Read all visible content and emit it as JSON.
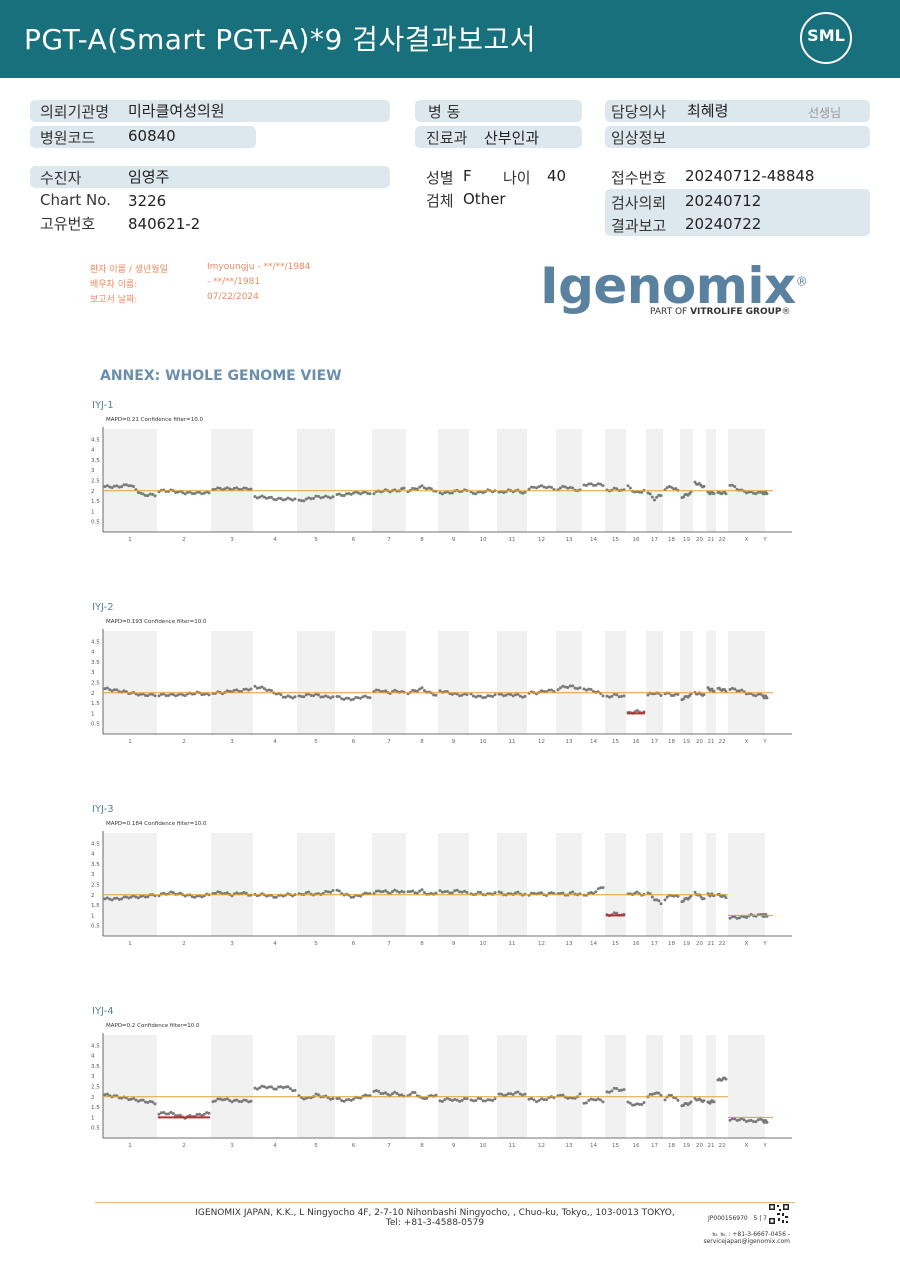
{
  "header": {
    "title": "PGT-A(Smart  PGT-A)*9 검사결과보고서",
    "logo_text": "SML"
  },
  "info": {
    "institution_label": "의뢰기관명",
    "institution_value": "미라클여성의원",
    "ward_label": "병  동",
    "doctor_label": "담당의사",
    "doctor_value": "최혜령",
    "doctor_suffix": "선생님",
    "hospital_code_label": "병원코드",
    "hospital_code_value": "60840",
    "dept_label": "진료과",
    "dept_value": "산부인과",
    "clinical_label": "임상정보",
    "patient_label": "수진자",
    "patient_value": "임영주",
    "sex_label": "성별",
    "sex_value": "F",
    "age_label": "나이",
    "age_value": "40",
    "receipt_label": "접수번호",
    "receipt_value": "20240712-48848",
    "chart_label": "Chart No.",
    "chart_value": "3226",
    "specimen_label": "검체",
    "specimen_value": "Other",
    "request_label": "검사의뢰",
    "request_value": "20240712",
    "unique_label": "고유번호",
    "unique_value": "840621-2",
    "report_label": "결과보고",
    "report_value": "20240722"
  },
  "patient_block": {
    "name_label": "환자 이름 / 생년월일",
    "name_value": "Imyoungju - **/**/1984",
    "partner_label": "배우자 이름:",
    "partner_value": "- **/**/1981",
    "date_label": "보고서 날짜:",
    "date_value": "07/22/2024"
  },
  "brand": {
    "name": "Igenomix",
    "reg": "®",
    "sub_pre": "PART OF ",
    "sub_bold": "VITROLIFE GROUP",
    "sub_post": "®"
  },
  "annex_title": "ANNEX: WHOLE GENOME VIEW",
  "colors": {
    "header": "#17707c",
    "box": "#dde7ee",
    "line": "#e0a030",
    "point": "#7a7a7a",
    "call": "#c0282d",
    "annex": "#6a8fae"
  },
  "chart_data": [
    {
      "type": "scatter",
      "title": "IYJ-1",
      "subtitle": "MAPD=0.21 Confidence filter=10.0",
      "ylim": [
        0,
        5
      ],
      "yticks": [
        "0.5",
        "1",
        "1.5",
        "2",
        "2.5",
        "3",
        "3.5",
        "4",
        "4.5"
      ],
      "x_labels": [
        "1",
        "2",
        "3",
        "4",
        "5",
        "6",
        "7",
        "8",
        "9",
        "10",
        "11",
        "12",
        "13",
        "14",
        "15",
        "16",
        "17",
        "18",
        "19",
        "20",
        "21",
        "22",
        "X",
        "Y"
      ],
      "reference_line": 2,
      "segments": [
        {
          "chrom": "1",
          "values": [
            2.2,
            2.2,
            2.3,
            1.8,
            1.8
          ]
        },
        {
          "chrom": "2",
          "values": [
            2.0,
            2.0,
            1.9,
            1.9,
            1.9
          ]
        },
        {
          "chrom": "3",
          "values": [
            2.1,
            2.1,
            2.1,
            2.1,
            2.1
          ]
        },
        {
          "chrom": "4",
          "values": [
            1.7,
            1.7,
            1.6,
            1.6,
            1.6
          ]
        },
        {
          "chrom": "5",
          "values": [
            1.5,
            1.6,
            1.7,
            1.7,
            1.7
          ]
        },
        {
          "chrom": "6",
          "values": [
            1.8,
            1.8,
            1.9,
            1.9,
            1.9
          ]
        },
        {
          "chrom": "7",
          "values": [
            1.9,
            2.0,
            2.0,
            2.0,
            2.1
          ]
        },
        {
          "chrom": "8",
          "values": [
            2.0,
            2.1,
            2.2,
            2.1,
            2.0
          ]
        },
        {
          "chrom": "9",
          "values": [
            1.9,
            1.9,
            2.0,
            2.0
          ]
        },
        {
          "chrom": "10",
          "values": [
            1.9,
            1.9,
            2.0,
            2.0
          ]
        },
        {
          "chrom": "11",
          "values": [
            1.9,
            2.0,
            2.0,
            1.9
          ]
        },
        {
          "chrom": "12",
          "values": [
            2.1,
            2.2,
            2.2,
            2.1
          ]
        },
        {
          "chrom": "13",
          "values": [
            2.1,
            2.2,
            2.1,
            2.0
          ]
        },
        {
          "chrom": "14",
          "values": [
            2.3,
            2.3,
            2.3
          ]
        },
        {
          "chrom": "15",
          "values": [
            2.0,
            2.1,
            2.0
          ]
        },
        {
          "chrom": "16",
          "values": [
            2.2,
            1.9,
            2.0
          ]
        },
        {
          "chrom": "17",
          "values": [
            1.9,
            1.6,
            1.8
          ]
        },
        {
          "chrom": "18",
          "values": [
            2.1,
            2.2,
            2.0
          ]
        },
        {
          "chrom": "19",
          "values": [
            1.7,
            1.9
          ]
        },
        {
          "chrom": "20",
          "values": [
            2.4,
            2.2
          ]
        },
        {
          "chrom": "21",
          "values": [
            1.9,
            1.9
          ]
        },
        {
          "chrom": "22",
          "values": [
            1.9,
            1.9
          ]
        },
        {
          "chrom": "X",
          "values": [
            2.3,
            2.0,
            1.9,
            1.9
          ]
        },
        {
          "chrom": "Y",
          "values": [
            1.9
          ]
        }
      ],
      "calls": []
    },
    {
      "type": "scatter",
      "title": "IYJ-2",
      "subtitle": "MAPD=0.193 Confidence filter=10.0",
      "ylim": [
        0,
        5
      ],
      "yticks": [
        "0.5",
        "1",
        "1.5",
        "2",
        "2.5",
        "3",
        "3.5",
        "4",
        "4.5"
      ],
      "x_labels": [
        "1",
        "2",
        "3",
        "4",
        "5",
        "6",
        "7",
        "8",
        "9",
        "10",
        "11",
        "12",
        "13",
        "14",
        "15",
        "16",
        "17",
        "18",
        "19",
        "20",
        "21",
        "22",
        "X",
        "Y"
      ],
      "reference_line": 2,
      "segments": [
        {
          "chrom": "1",
          "values": [
            2.2,
            2.1,
            2.0,
            1.9,
            1.9
          ]
        },
        {
          "chrom": "2",
          "values": [
            1.9,
            1.9,
            1.9,
            2.0,
            1.9
          ]
        },
        {
          "chrom": "3",
          "values": [
            2.0,
            2.0,
            2.1,
            2.1,
            2.2
          ]
        },
        {
          "chrom": "4",
          "values": [
            2.3,
            2.2,
            2.0,
            1.8,
            1.8
          ]
        },
        {
          "chrom": "5",
          "values": [
            1.8,
            1.9,
            1.9,
            1.8,
            1.8
          ]
        },
        {
          "chrom": "6",
          "values": [
            1.8,
            1.7,
            1.7,
            1.8,
            1.8
          ]
        },
        {
          "chrom": "7",
          "values": [
            2.1,
            2.1,
            2.0,
            2.1,
            2.0
          ]
        },
        {
          "chrom": "8",
          "values": [
            2.0,
            2.1,
            2.2,
            2.0,
            1.9
          ]
        },
        {
          "chrom": "9",
          "values": [
            2.1,
            2.0,
            1.9,
            1.9
          ]
        },
        {
          "chrom": "10",
          "values": [
            1.9,
            1.8,
            1.8,
            1.9
          ]
        },
        {
          "chrom": "11",
          "values": [
            1.9,
            1.9,
            1.9,
            1.8
          ]
        },
        {
          "chrom": "12",
          "values": [
            2.0,
            2.0,
            2.1,
            2.1
          ]
        },
        {
          "chrom": "13",
          "values": [
            2.2,
            2.3,
            2.3,
            2.2
          ]
        },
        {
          "chrom": "14",
          "values": [
            2.2,
            2.1,
            1.9
          ]
        },
        {
          "chrom": "15",
          "values": [
            1.8,
            1.9,
            1.8
          ]
        },
        {
          "chrom": "16",
          "values": [
            1.0,
            1.1,
            1.05
          ]
        },
        {
          "chrom": "17",
          "values": [
            1.9,
            2.0,
            1.9
          ]
        },
        {
          "chrom": "18",
          "values": [
            2.0,
            1.9,
            1.9
          ]
        },
        {
          "chrom": "19",
          "values": [
            1.7,
            1.9
          ]
        },
        {
          "chrom": "20",
          "values": [
            2.0,
            1.9
          ]
        },
        {
          "chrom": "21",
          "values": [
            2.2,
            2.1
          ]
        },
        {
          "chrom": "22",
          "values": [
            2.2,
            2.1
          ]
        },
        {
          "chrom": "X",
          "values": [
            2.2,
            2.1,
            1.9,
            1.9
          ]
        },
        {
          "chrom": "Y",
          "values": [
            1.8
          ]
        }
      ],
      "calls": [
        {
          "chrom": "16",
          "value": 1
        }
      ]
    },
    {
      "type": "scatter",
      "title": "IYJ-3",
      "subtitle": "MAPD=0.184 Confidence filter=10.0",
      "ylim": [
        0,
        5
      ],
      "yticks": [
        "0.5",
        "1",
        "1.5",
        "2",
        "2.5",
        "3",
        "3.5",
        "4",
        "4.5"
      ],
      "x_labels": [
        "1",
        "2",
        "3",
        "4",
        "5",
        "6",
        "7",
        "8",
        "9",
        "10",
        "11",
        "12",
        "13",
        "14",
        "15",
        "16",
        "17",
        "18",
        "19",
        "20",
        "21",
        "22",
        "X",
        "Y"
      ],
      "reference_line": 2,
      "segments": [
        {
          "chrom": "1",
          "values": [
            1.8,
            1.8,
            1.9,
            1.9,
            2.0
          ]
        },
        {
          "chrom": "2",
          "values": [
            2.0,
            2.1,
            2.0,
            1.9,
            2.0
          ]
        },
        {
          "chrom": "3",
          "values": [
            2.1,
            2.1,
            2.0,
            2.1,
            2.0
          ]
        },
        {
          "chrom": "4",
          "values": [
            2.0,
            2.0,
            1.9,
            2.0,
            2.0
          ]
        },
        {
          "chrom": "5",
          "values": [
            2.0,
            2.1,
            2.0,
            2.1,
            2.2
          ]
        },
        {
          "chrom": "6",
          "values": [
            2.2,
            2.0,
            1.9,
            2.0,
            2.1
          ]
        },
        {
          "chrom": "7",
          "values": [
            2.1,
            2.2,
            2.1,
            2.2,
            2.1
          ]
        },
        {
          "chrom": "8",
          "values": [
            2.2,
            2.1,
            2.2,
            2.0,
            2.1
          ]
        },
        {
          "chrom": "9",
          "values": [
            2.2,
            2.1,
            2.2,
            2.1
          ]
        },
        {
          "chrom": "10",
          "values": [
            2.0,
            2.1,
            2.0,
            2.1
          ]
        },
        {
          "chrom": "11",
          "values": [
            2.1,
            2.0,
            2.1,
            2.0
          ]
        },
        {
          "chrom": "12",
          "values": [
            2.0,
            2.1,
            2.0,
            2.1
          ]
        },
        {
          "chrom": "13",
          "values": [
            2.1,
            2.0,
            2.1,
            2.0
          ]
        },
        {
          "chrom": "14",
          "values": [
            2.0,
            2.1,
            2.4
          ]
        },
        {
          "chrom": "15",
          "values": [
            1.0,
            1.1,
            1.0
          ]
        },
        {
          "chrom": "16",
          "values": [
            2.0,
            2.1,
            2.0
          ]
        },
        {
          "chrom": "17",
          "values": [
            2.1,
            1.8,
            1.6
          ]
        },
        {
          "chrom": "18",
          "values": [
            1.8,
            2.0,
            1.9
          ]
        },
        {
          "chrom": "19",
          "values": [
            1.7,
            1.9
          ]
        },
        {
          "chrom": "20",
          "values": [
            2.1,
            1.8
          ]
        },
        {
          "chrom": "21",
          "values": [
            2.0,
            2.0
          ]
        },
        {
          "chrom": "22",
          "values": [
            2.0,
            1.9
          ]
        },
        {
          "chrom": "X",
          "values": [
            0.9,
            0.9,
            1.0,
            1.0
          ]
        },
        {
          "chrom": "Y",
          "values": [
            1.0
          ]
        }
      ],
      "calls": [
        {
          "chrom": "15",
          "value": 1
        }
      ]
    },
    {
      "type": "scatter",
      "title": "IYJ-4",
      "subtitle": "MAPD=0.2 Confidence filter=10.0",
      "ylim": [
        0,
        5
      ],
      "yticks": [
        "0.5",
        "1",
        "1.5",
        "2",
        "2.5",
        "3",
        "3.5",
        "4",
        "4.5"
      ],
      "x_labels": [
        "1",
        "2",
        "3",
        "4",
        "5",
        "6",
        "7",
        "8",
        "9",
        "10",
        "11",
        "12",
        "13",
        "14",
        "15",
        "16",
        "17",
        "18",
        "19",
        "20",
        "21",
        "22",
        "X",
        "Y"
      ],
      "reference_line": 2,
      "segments": [
        {
          "chrom": "1",
          "values": [
            2.1,
            2.0,
            1.9,
            1.8,
            1.7
          ]
        },
        {
          "chrom": "2",
          "values": [
            1.2,
            1.2,
            1.0,
            1.1,
            1.2
          ]
        },
        {
          "chrom": "3",
          "values": [
            1.8,
            1.9,
            1.8,
            1.8,
            1.8
          ]
        },
        {
          "chrom": "4",
          "values": [
            2.4,
            2.5,
            2.4,
            2.5,
            2.3
          ]
        },
        {
          "chrom": "5",
          "values": [
            2.0,
            1.9,
            2.1,
            2.0,
            1.9
          ]
        },
        {
          "chrom": "6",
          "values": [
            1.9,
            1.8,
            1.9,
            2.0,
            2.1
          ]
        },
        {
          "chrom": "7",
          "values": [
            2.3,
            2.2,
            2.1,
            2.2,
            2.0
          ]
        },
        {
          "chrom": "8",
          "values": [
            2.1,
            2.2,
            1.9,
            2.0,
            2.1
          ]
        },
        {
          "chrom": "9",
          "values": [
            1.8,
            1.9,
            1.8,
            1.9
          ]
        },
        {
          "chrom": "10",
          "values": [
            1.8,
            1.9,
            1.8,
            1.9
          ]
        },
        {
          "chrom": "11",
          "values": [
            2.1,
            2.1,
            2.2,
            2.1
          ]
        },
        {
          "chrom": "12",
          "values": [
            1.9,
            1.8,
            1.9,
            2.0
          ]
        },
        {
          "chrom": "13",
          "values": [
            2.1,
            2.0,
            1.9,
            2.1
          ]
        },
        {
          "chrom": "14",
          "values": [
            1.7,
            1.9,
            1.8
          ]
        },
        {
          "chrom": "15",
          "values": [
            2.2,
            2.4,
            2.3
          ]
        },
        {
          "chrom": "16",
          "values": [
            1.7,
            1.6,
            1.7
          ]
        },
        {
          "chrom": "17",
          "values": [
            2.0,
            2.2,
            2.1
          ]
        },
        {
          "chrom": "18",
          "values": [
            1.9,
            2.1,
            1.8
          ]
        },
        {
          "chrom": "19",
          "values": [
            1.6,
            1.7
          ]
        },
        {
          "chrom": "20",
          "values": [
            1.9,
            1.8
          ]
        },
        {
          "chrom": "21",
          "values": [
            1.7,
            1.8
          ]
        },
        {
          "chrom": "22",
          "values": [
            2.8,
            2.9
          ]
        },
        {
          "chrom": "X",
          "values": [
            0.9,
            0.9,
            0.8,
            0.9
          ]
        },
        {
          "chrom": "Y",
          "values": [
            0.8
          ]
        }
      ],
      "calls": [
        {
          "chrom": "2",
          "value": 1
        }
      ]
    }
  ],
  "footer": {
    "address": "IGENOMIX JAPAN, K.K., L Ningyocho 4F, 2-7-10 Nihonbashi Ningyocho, , Chuo-ku, Tokyo,, 103-0013 TOKYO, Tel: +81-3-4588-0579",
    "code": "JP000156970",
    "page": "5 | 7",
    "contact_1": "℡ ℡ : +81-3-6667-0456 -",
    "contact_2": "servicejapan@igenomix.com"
  }
}
